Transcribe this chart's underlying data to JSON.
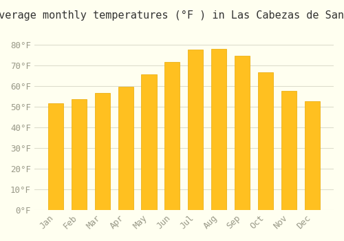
{
  "title": "Average monthly temperatures (°F ) in Las Cabezas de San Juan",
  "months": [
    "Jan",
    "Feb",
    "Mar",
    "Apr",
    "May",
    "Jun",
    "Jul",
    "Aug",
    "Sep",
    "Oct",
    "Nov",
    "Dec"
  ],
  "values": [
    51.5,
    53.5,
    56.5,
    59.5,
    65.5,
    71.5,
    77.5,
    78.0,
    74.5,
    66.5,
    57.5,
    52.5
  ],
  "bar_color": "#FFC020",
  "bar_edge_color": "#E8A800",
  "background_color": "#FFFFF0",
  "grid_color": "#DDDDCC",
  "ylim": [
    0,
    88
  ],
  "yticks": [
    0,
    10,
    20,
    30,
    40,
    50,
    60,
    70,
    80
  ],
  "title_fontsize": 11,
  "tick_fontsize": 9,
  "tick_label_color": "#999988"
}
